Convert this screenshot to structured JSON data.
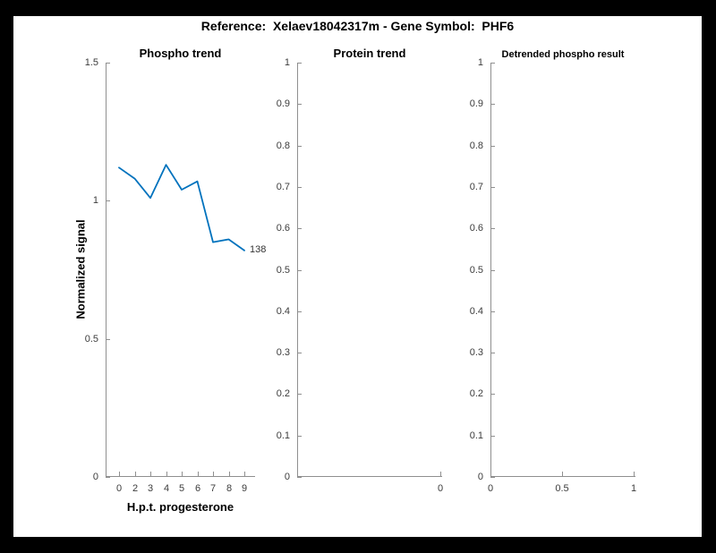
{
  "figure_title": "Reference:  Xelaev18042317m - Gene Symbol:  PHF6",
  "accent_color": "#0072BD",
  "chart_data": [
    {
      "type": "line",
      "title": "Phospho trend",
      "xlabel": "H.p.t. progesterone",
      "ylabel": "Normalized signal",
      "x_tick_labels": [
        "0",
        "2",
        "3",
        "4",
        "5",
        "6",
        "7",
        "8",
        "9"
      ],
      "y_tick_labels": [
        "0",
        "0.5",
        "1",
        "1.5"
      ],
      "ylim": [
        0,
        1.5
      ],
      "x_spacing": "equal",
      "grid": false,
      "legend": "none",
      "series": [
        {
          "name": "phospho signal",
          "color": "#0072BD",
          "x": [
            0,
            2,
            3,
            4,
            5,
            6,
            7,
            8,
            9
          ],
          "values": [
            1.12,
            1.08,
            1.01,
            1.13,
            1.04,
            1.07,
            0.85,
            0.86,
            0.82
          ]
        }
      ],
      "annotation": "138"
    },
    {
      "type": "line",
      "title": "Protein trend",
      "xlabel": "",
      "ylabel": "",
      "x_tick_labels": [
        "0"
      ],
      "y_tick_labels": [
        "0",
        "0.1",
        "0.2",
        "0.3",
        "0.4",
        "0.5",
        "0.6",
        "0.7",
        "0.8",
        "0.9",
        "1"
      ],
      "ylim": [
        0,
        1
      ],
      "grid": false,
      "legend": "none",
      "series": []
    },
    {
      "type": "line",
      "title": "Detrended phospho result",
      "xlabel": "",
      "ylabel": "",
      "x_tick_labels": [
        "0",
        "0.5",
        "1"
      ],
      "y_tick_labels": [
        "0",
        "0.1",
        "0.2",
        "0.3",
        "0.4",
        "0.5",
        "0.6",
        "0.7",
        "0.8",
        "0.9",
        "1"
      ],
      "xlim": [
        0,
        1
      ],
      "ylim": [
        0,
        1
      ],
      "grid": false,
      "legend": "none",
      "series": []
    }
  ]
}
